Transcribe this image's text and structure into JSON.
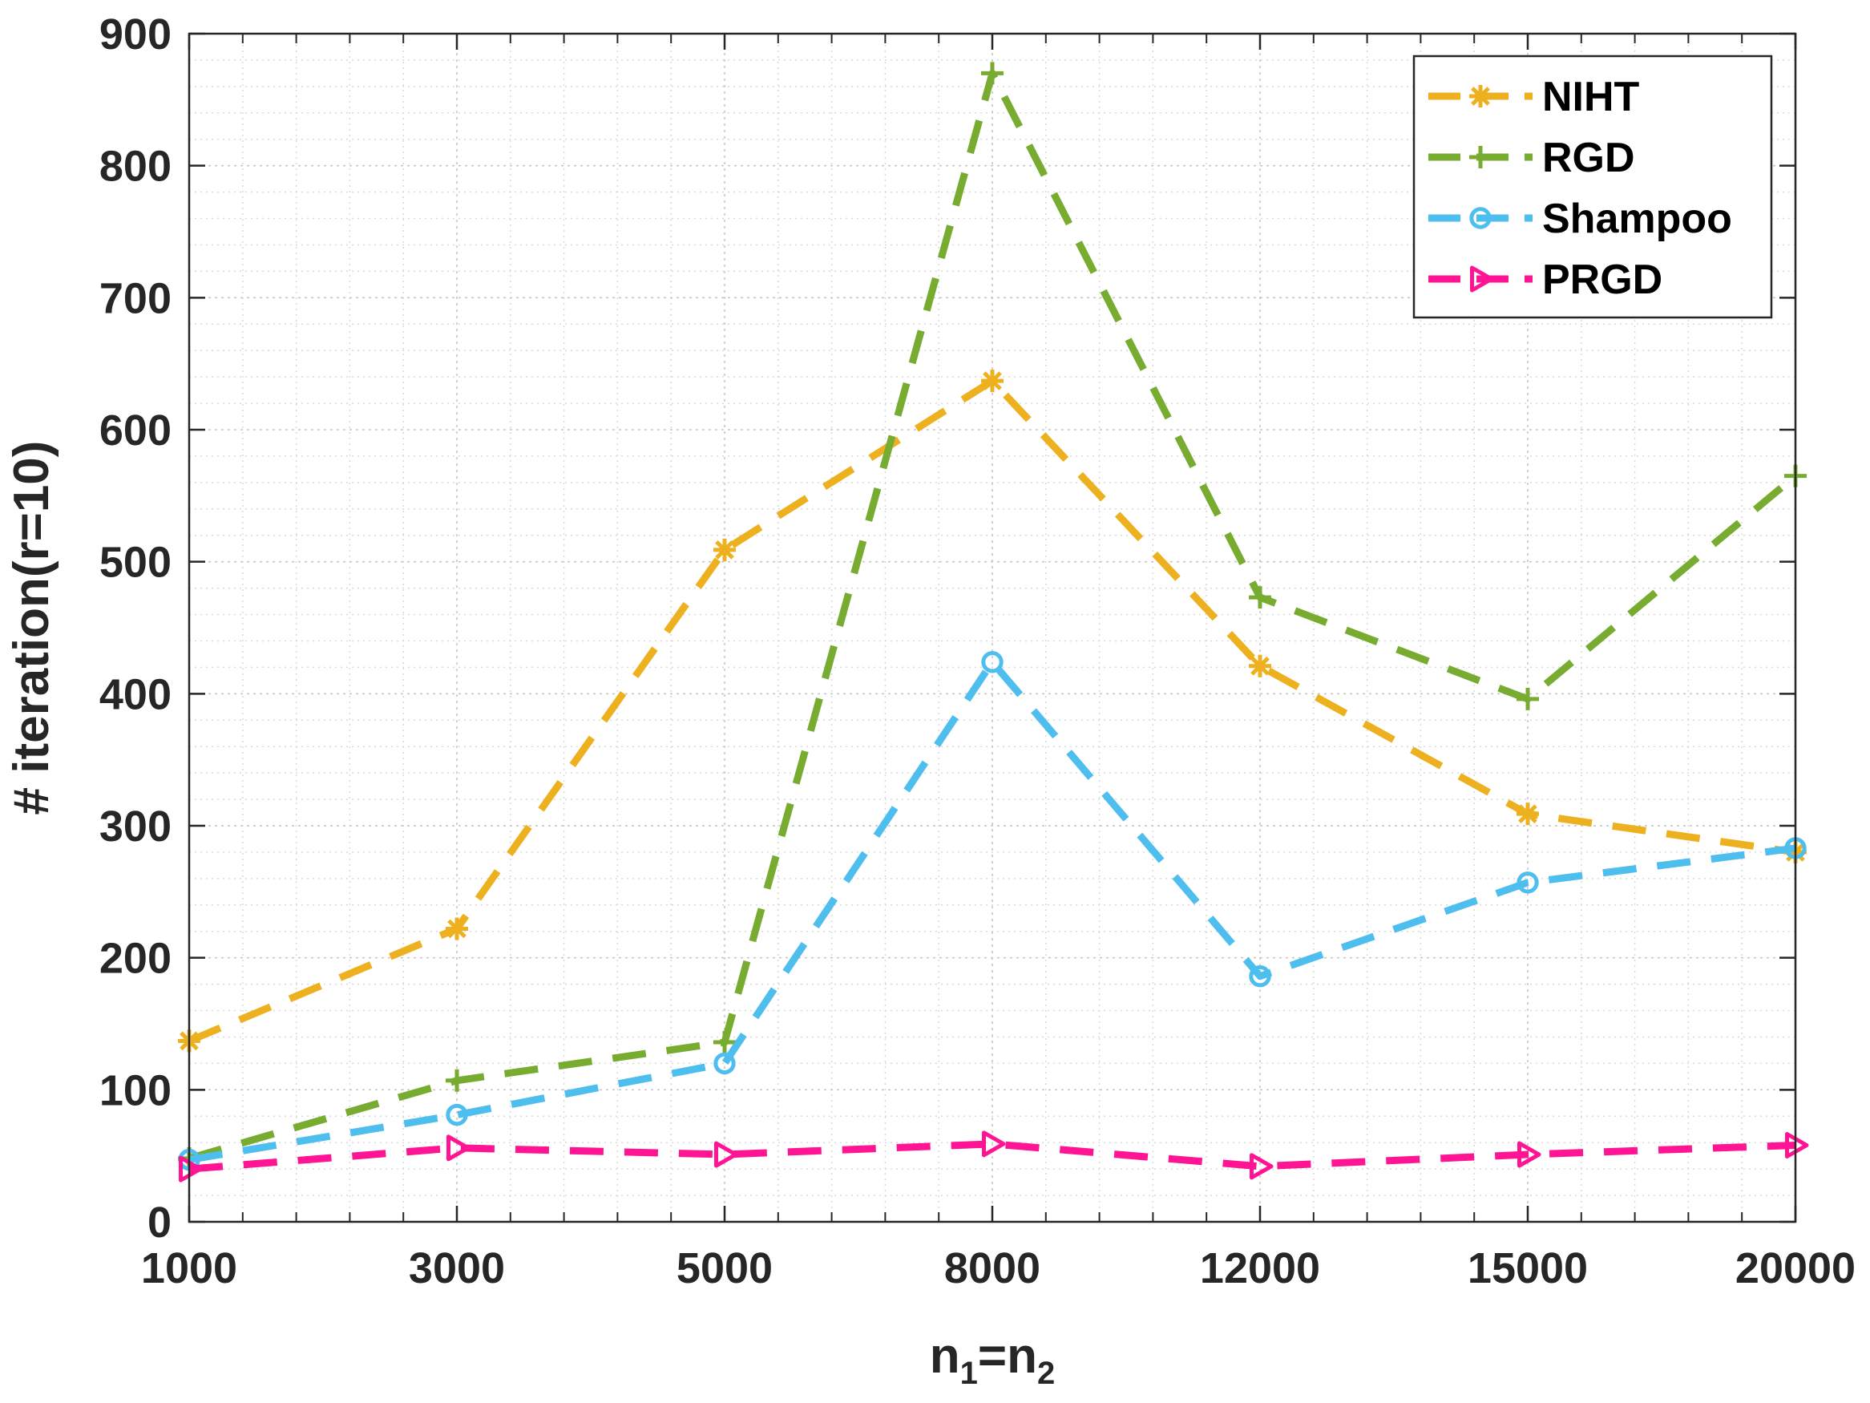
{
  "chart_data": {
    "type": "line",
    "title": "",
    "x": [
      "1000",
      "3000",
      "5000",
      "8000",
      "12000",
      "15000",
      "20000"
    ],
    "xlabel": {
      "base": "n",
      "sub1": "1",
      "equals": "=",
      "base2": "n",
      "sub2": "2"
    },
    "ylabel": "# iteration(r=10)",
    "ylim": [
      0,
      900
    ],
    "yticks": [
      "0",
      "100",
      "200",
      "300",
      "400",
      "500",
      "600",
      "700",
      "800",
      "900"
    ],
    "grid": true,
    "legend_position": "top-right",
    "series": [
      {
        "name": "NIHT",
        "color": "#EDB120",
        "marker": "asterisk",
        "values": [
          137,
          222,
          509,
          637,
          421,
          309,
          280
        ]
      },
      {
        "name": "RGD",
        "color": "#77AC30",
        "marker": "plus",
        "values": [
          48,
          107,
          136,
          870,
          473,
          396,
          565
        ]
      },
      {
        "name": "Shampoo",
        "color": "#4DBEEE",
        "marker": "circle",
        "values": [
          47,
          81,
          120,
          424,
          186,
          257,
          283
        ]
      },
      {
        "name": "PRGD",
        "color": "#FF1493",
        "marker": "triangle-right",
        "values": [
          40,
          56,
          51,
          59,
          42,
          51,
          58
        ]
      }
    ]
  }
}
